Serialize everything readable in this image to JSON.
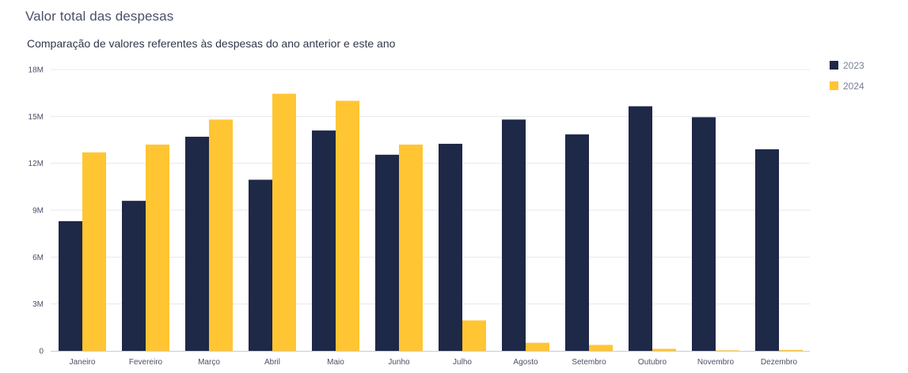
{
  "panel": {
    "title": "Valor total das despesas"
  },
  "chart_data": {
    "type": "bar",
    "title": "Comparação de valores referentes às despesas do ano anterior e este ano",
    "xlabel": "",
    "ylabel": "",
    "categories": [
      "Janeiro",
      "Fevereiro",
      "Março",
      "Abril",
      "Maio",
      "Junho",
      "Julho",
      "Agosto",
      "Setembro",
      "Outubro",
      "Novembro",
      "Dezembro"
    ],
    "series": [
      {
        "name": "2023",
        "color": "#1e2847",
        "values": [
          8300000,
          9600000,
          13700000,
          10950000,
          14100000,
          12550000,
          13250000,
          14800000,
          13850000,
          15650000,
          14950000,
          12900000
        ]
      },
      {
        "name": "2024",
        "color": "#ffc533",
        "values": [
          12700000,
          13200000,
          14800000,
          16450000,
          16000000,
          13200000,
          1950000,
          520000,
          380000,
          130000,
          20000,
          60000
        ]
      }
    ],
    "ylim": [
      0,
      18000000
    ],
    "yticks": [
      0,
      3000000,
      6000000,
      9000000,
      12000000,
      15000000,
      18000000
    ],
    "ytick_labels": [
      "0",
      "3M",
      "6M",
      "9M",
      "12M",
      "15M",
      "18M"
    ],
    "grid": true,
    "legend_position": "top-right"
  }
}
